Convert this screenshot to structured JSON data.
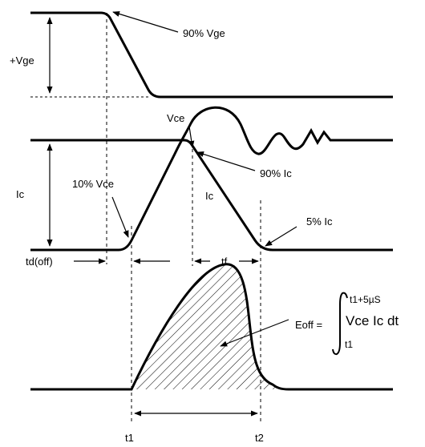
{
  "labels": {
    "vge_90": "90% Vge",
    "plus_vge": "+Vge",
    "vce": "Vce",
    "ic_left": "Ic",
    "vce_10": "10% Vce",
    "ic_90": "90% Ic",
    "ic_curve": "Ic",
    "ic_5": "5% Ic",
    "td_off": "td(off)",
    "tf": "tf",
    "eoff": "Eoff =",
    "integral_upper": "t1+5µS",
    "integral_body": "Vce Ic dt",
    "integral_lower": "t1",
    "t1": "t1",
    "t2": "t2"
  },
  "colors": {
    "ink": "#000000"
  }
}
